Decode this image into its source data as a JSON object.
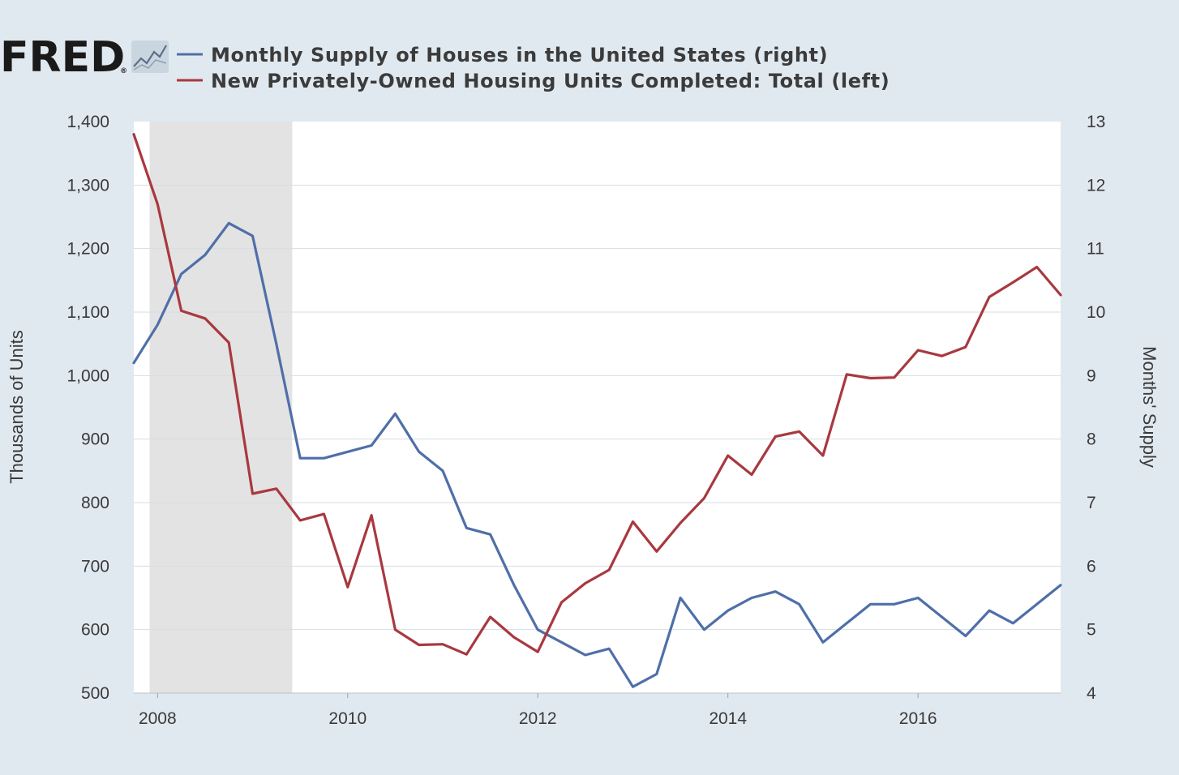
{
  "logo": {
    "text": "FRED",
    "registered": "®"
  },
  "colors": {
    "background": "#e1e9f0",
    "plot_background": "#ffffff",
    "grid": "#d6dde6",
    "recession": "#e3e3e3",
    "supply": "#4f6fa8",
    "completions": "#a8393f"
  },
  "chart_data": {
    "type": "line",
    "title": "",
    "legend_position": "top",
    "recession_period": [
      "2007-12",
      "2009-06"
    ],
    "x_ticks": [
      "2008",
      "2010",
      "2012",
      "2014",
      "2016"
    ],
    "x_range": [
      2007.75,
      2017.5
    ],
    "left_axis": {
      "label": "Thousands of Units",
      "range": [
        500,
        1400
      ],
      "ticks": [
        "500",
        "600",
        "700",
        "800",
        "900",
        "1,000",
        "1,100",
        "1,200",
        "1,300",
        "1,400"
      ]
    },
    "right_axis": {
      "label": "Months' Supply",
      "range": [
        4,
        13
      ],
      "ticks": [
        "4",
        "5",
        "6",
        "7",
        "8",
        "9",
        "10",
        "11",
        "12",
        "13"
      ]
    },
    "series": [
      {
        "name": "Monthly Supply of Houses in the United States (right)",
        "axis": "right",
        "color": "#4f6fa8",
        "x": [
          2007.75,
          2008.0,
          2008.25,
          2008.5,
          2008.75,
          2009.0,
          2009.25,
          2009.5,
          2009.75,
          2010.0,
          2010.25,
          2010.5,
          2010.75,
          2011.0,
          2011.25,
          2011.5,
          2011.75,
          2012.0,
          2012.25,
          2012.5,
          2012.75,
          2013.0,
          2013.25,
          2013.5,
          2013.75,
          2014.0,
          2014.25,
          2014.5,
          2014.75,
          2015.0,
          2015.25,
          2015.5,
          2015.75,
          2016.0,
          2016.25,
          2016.5,
          2016.75,
          2017.0,
          2017.25,
          2017.5
        ],
        "values": [
          9.2,
          9.8,
          10.6,
          10.9,
          11.4,
          11.2,
          9.5,
          7.7,
          7.7,
          7.8,
          7.9,
          8.4,
          7.8,
          7.5,
          6.6,
          6.5,
          5.7,
          5.0,
          4.8,
          4.6,
          4.7,
          4.1,
          4.3,
          5.5,
          5.0,
          5.3,
          5.5,
          5.6,
          5.4,
          4.8,
          5.1,
          5.4,
          5.4,
          5.5,
          5.2,
          4.9,
          5.3,
          5.1,
          5.4,
          5.7
        ]
      },
      {
        "name": "New Privately-Owned Housing Units Completed: Total (left)",
        "axis": "left",
        "color": "#a8393f",
        "x": [
          2007.75,
          2008.0,
          2008.25,
          2008.5,
          2008.75,
          2009.0,
          2009.25,
          2009.5,
          2009.75,
          2010.0,
          2010.25,
          2010.5,
          2010.75,
          2011.0,
          2011.25,
          2011.5,
          2011.75,
          2012.0,
          2012.25,
          2012.5,
          2012.75,
          2013.0,
          2013.25,
          2013.5,
          2013.75,
          2014.0,
          2014.25,
          2014.5,
          2014.75,
          2015.0,
          2015.25,
          2015.5,
          2015.75,
          2016.0,
          2016.25,
          2016.5,
          2016.75,
          2017.0,
          2017.25,
          2017.5
        ],
        "values": [
          1380,
          1270,
          1102,
          1090,
          1052,
          814,
          822,
          772,
          782,
          667,
          780,
          600,
          576,
          577,
          561,
          620,
          588,
          565,
          643,
          673,
          694,
          770,
          723,
          768,
          807,
          874,
          844,
          904,
          912,
          874,
          1002,
          996,
          997,
          1040,
          1031,
          1045,
          1124,
          1147,
          1171,
          1127
        ]
      }
    ]
  }
}
